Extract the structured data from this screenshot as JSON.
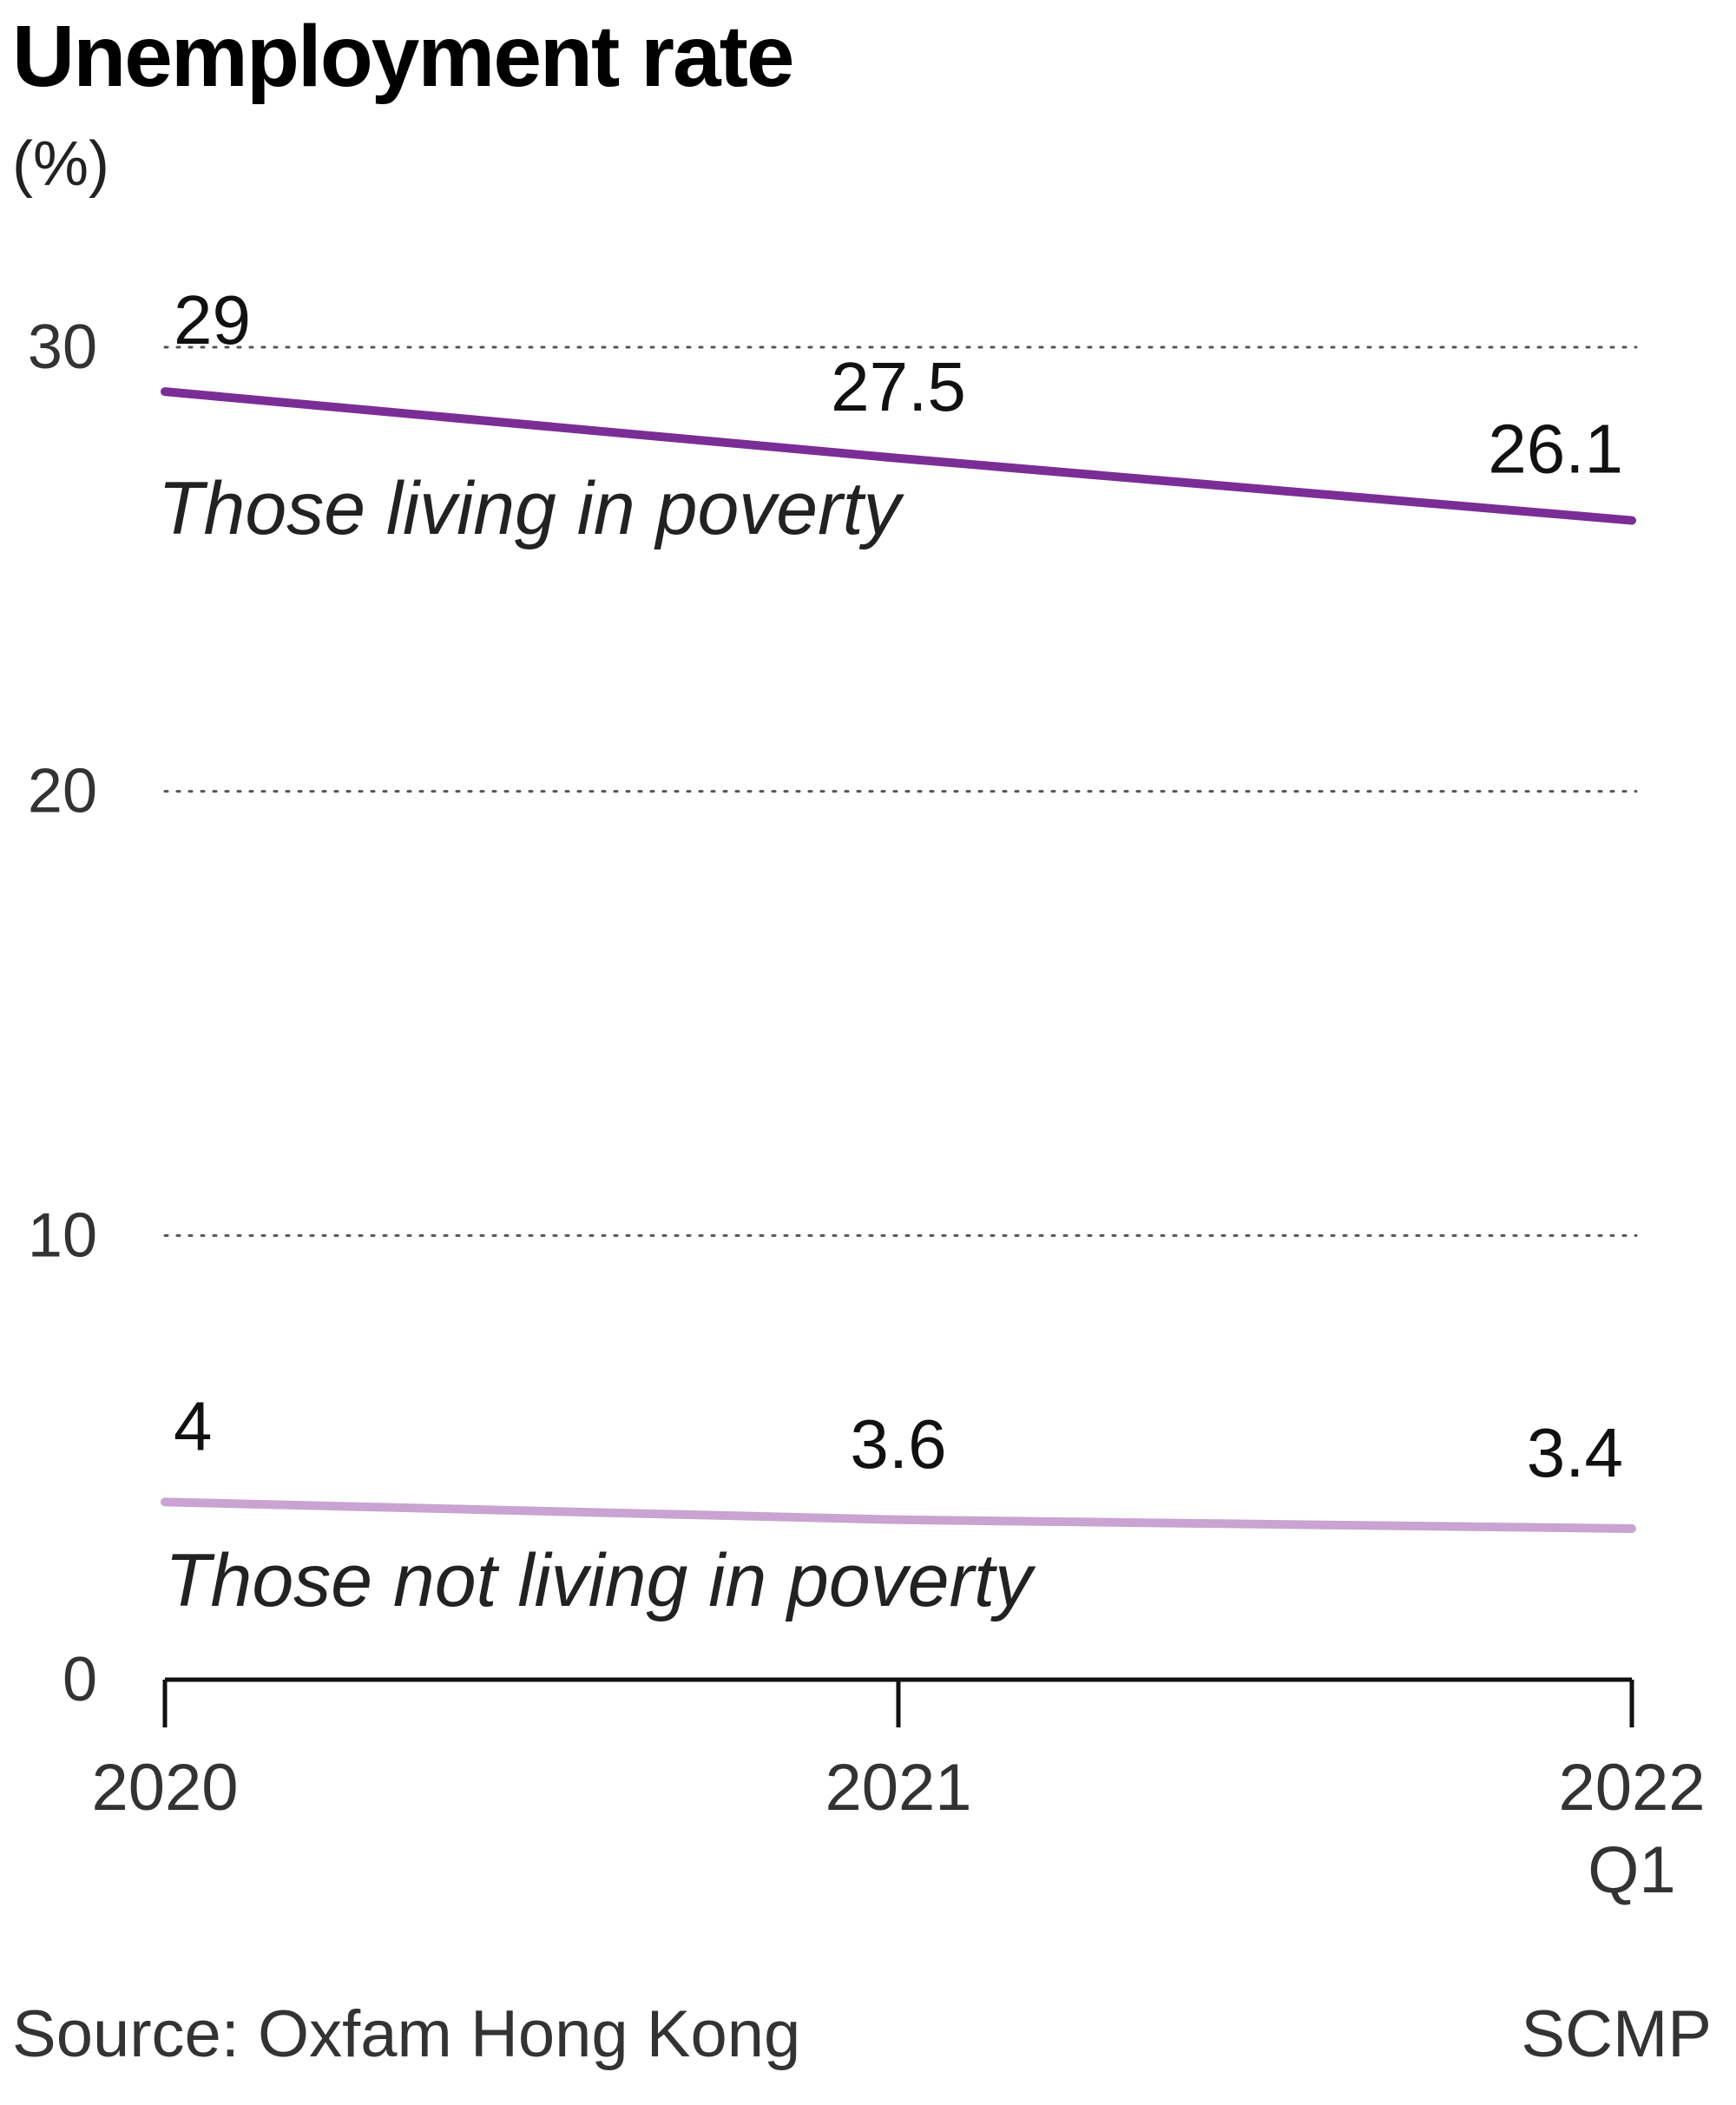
{
  "chart_data": {
    "type": "line",
    "title": "Unemployment rate",
    "unit_label": "(%)",
    "categories": [
      "2020",
      "2021",
      "2022 Q1"
    ],
    "category_lines": [
      [
        "2020"
      ],
      [
        "2021"
      ],
      [
        "2022",
        "Q1"
      ]
    ],
    "ylim": [
      0,
      30
    ],
    "yticks": [
      0,
      10,
      20,
      30
    ],
    "grid": true,
    "series": [
      {
        "name": "Those living in poverty",
        "values": [
          29,
          27.5,
          26.1
        ],
        "value_labels": [
          "29",
          "27.5",
          "26.1"
        ],
        "color": "#7b2d96"
      },
      {
        "name": "Those not living in poverty",
        "values": [
          4,
          3.6,
          3.4
        ],
        "value_labels": [
          "4",
          "3.6",
          "3.4"
        ],
        "color": "#c9a3d1"
      }
    ]
  },
  "footer": {
    "source": "Source: Oxfam Hong Kong",
    "credit": "SCMP"
  }
}
